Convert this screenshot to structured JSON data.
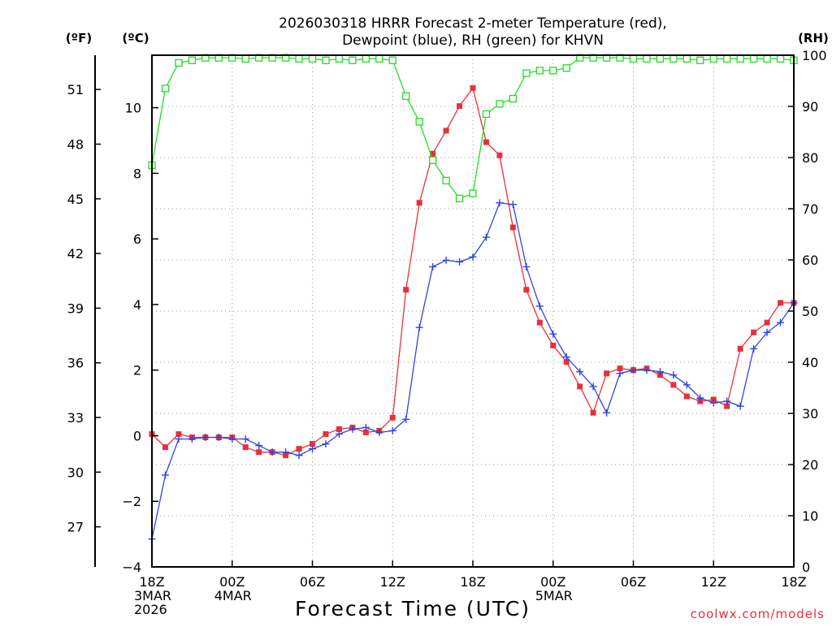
{
  "chart_data": {
    "type": "line",
    "title": "2026030318 HRRR Forecast 2-meter Temperature (red),",
    "subtitle": "Dewpoint (blue), RH (green) for KHVN",
    "xlabel": "Forecast Time (UTC)",
    "unit_f": "(ºF)",
    "unit_c": "(ºC)",
    "unit_rh": "(RH)",
    "watermark": "coolwx.com/models",
    "x_hours": [
      0,
      1,
      2,
      3,
      4,
      5,
      6,
      7,
      8,
      9,
      10,
      11,
      12,
      13,
      14,
      15,
      16,
      17,
      18,
      19,
      20,
      21,
      22,
      23,
      24,
      25,
      26,
      27,
      28,
      29,
      30,
      31,
      32,
      33,
      34,
      35,
      36,
      37,
      38,
      39,
      40,
      41,
      42,
      43,
      44,
      45,
      46,
      47,
      48
    ],
    "x_ticks": [
      {
        "hour": 0,
        "lines": [
          "18Z",
          "3MAR",
          "2026"
        ]
      },
      {
        "hour": 6,
        "lines": [
          "00Z",
          "4MAR"
        ]
      },
      {
        "hour": 12,
        "lines": [
          "06Z"
        ]
      },
      {
        "hour": 18,
        "lines": [
          "12Z"
        ]
      },
      {
        "hour": 24,
        "lines": [
          "18Z"
        ]
      },
      {
        "hour": 30,
        "lines": [
          "00Z",
          "5MAR"
        ]
      },
      {
        "hour": 36,
        "lines": [
          "06Z"
        ]
      },
      {
        "hour": 42,
        "lines": [
          "12Z"
        ]
      },
      {
        "hour": 48,
        "lines": [
          "18Z"
        ]
      }
    ],
    "xlim": [
      0,
      48
    ],
    "ylim_c": [
      -4.0,
      11.6
    ],
    "ylim_rh": [
      0,
      100
    ],
    "y_ticks_c": [
      -4,
      -2,
      0,
      2,
      4,
      6,
      8,
      10
    ],
    "y_ticks_f": [
      27,
      30,
      33,
      36,
      39,
      42,
      45,
      48,
      51
    ],
    "y_ticks_rh": [
      0,
      10,
      20,
      30,
      40,
      50,
      60,
      70,
      80,
      90,
      100
    ],
    "grid": true,
    "series": [
      {
        "name": "Temperature",
        "unit": "°C",
        "color": "#e8303a",
        "marker": "filled-square",
        "values": [
          0.05,
          -0.35,
          0.05,
          -0.05,
          -0.05,
          -0.05,
          -0.05,
          -0.35,
          -0.5,
          -0.5,
          -0.6,
          -0.4,
          -0.25,
          0.05,
          0.2,
          0.25,
          0.1,
          0.15,
          0.55,
          4.45,
          7.1,
          8.6,
          9.3,
          10.05,
          10.6,
          8.95,
          8.55,
          6.35,
          4.45,
          3.45,
          2.75,
          2.25,
          1.5,
          0.7,
          1.9,
          2.05,
          2.0,
          2.05,
          1.85,
          1.55,
          1.2,
          1.05,
          1.1,
          0.9,
          2.65,
          3.15,
          3.45,
          4.05,
          4.05
        ]
      },
      {
        "name": "Dewpoint",
        "unit": "°C",
        "color": "#3344dd",
        "marker": "plus",
        "values": [
          -3.15,
          -1.2,
          -0.1,
          -0.1,
          -0.05,
          -0.05,
          -0.1,
          -0.1,
          -0.3,
          -0.5,
          -0.5,
          -0.6,
          -0.4,
          -0.25,
          0.05,
          0.2,
          0.25,
          0.1,
          0.15,
          0.5,
          3.3,
          5.15,
          5.35,
          5.3,
          5.45,
          6.05,
          7.1,
          7.05,
          5.15,
          3.95,
          3.1,
          2.4,
          1.95,
          1.5,
          0.7,
          1.9,
          2.0,
          2.0,
          1.95,
          1.85,
          1.55,
          1.15,
          1.0,
          1.05,
          0.9,
          2.65,
          3.15,
          3.45,
          4.05
        ]
      },
      {
        "name": "RH",
        "unit": "%",
        "color": "#22dd22",
        "marker": "open-square",
        "values": [
          78.5,
          93.5,
          98.5,
          99.0,
          99.5,
          99.5,
          99.5,
          99.3,
          99.5,
          99.5,
          99.5,
          99.3,
          99.3,
          99.0,
          99.3,
          99.0,
          99.3,
          99.3,
          99.0,
          92.0,
          87.0,
          79.5,
          75.5,
          72.0,
          73.0,
          88.5,
          90.5,
          91.5,
          96.5,
          97.0,
          97.0,
          97.5,
          99.5,
          99.5,
          99.5,
          99.5,
          99.3,
          99.3,
          99.3,
          99.3,
          99.3,
          99.0,
          99.3,
          99.3,
          99.3,
          99.3,
          99.3,
          99.3,
          99.0
        ]
      }
    ]
  }
}
